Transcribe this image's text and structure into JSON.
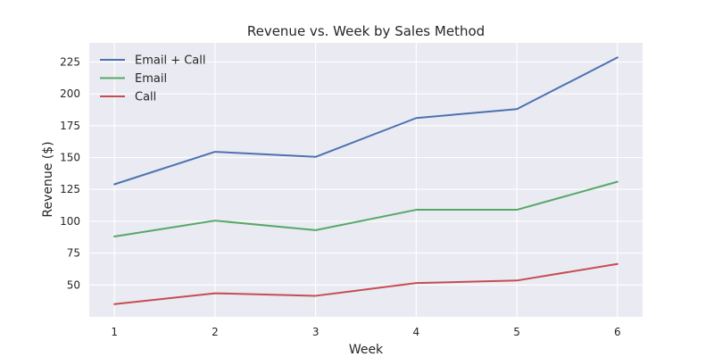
{
  "chart_data": {
    "type": "line",
    "title": "Revenue vs. Week by Sales Method",
    "xlabel": "Week",
    "ylabel": "Revenue ($)",
    "x": [
      1,
      2,
      3,
      4,
      5,
      6
    ],
    "xticks": [
      1,
      2,
      3,
      4,
      5,
      6
    ],
    "yticks": [
      50,
      75,
      100,
      125,
      150,
      175,
      200,
      225
    ],
    "xlim": [
      0.75,
      6.25
    ],
    "ylim": [
      25,
      240
    ],
    "grid": true,
    "background": "#eaeaf2",
    "legend_position": "top-left",
    "series": [
      {
        "name": "Email + Call",
        "color": "#4c72b0",
        "values": [
          129,
          154.5,
          150.5,
          181,
          188,
          228.5
        ]
      },
      {
        "name": "Email",
        "color": "#55a868",
        "values": [
          88,
          100.5,
          93,
          109,
          109,
          131
        ]
      },
      {
        "name": "Call",
        "color": "#c44e52",
        "values": [
          35,
          43.5,
          41.5,
          51.5,
          53.5,
          66.5
        ]
      }
    ]
  }
}
